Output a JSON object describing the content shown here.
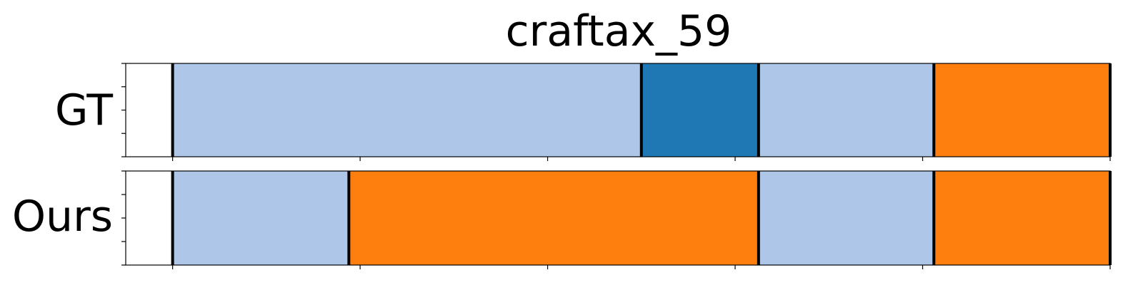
{
  "chart_data": {
    "type": "segmentation_timeline",
    "title": "craftax_59",
    "xlim": [
      -5,
      100
    ],
    "x_ticks": [
      0,
      20,
      40,
      60,
      80,
      100
    ],
    "x_tick_labels_shown": false,
    "y_ticks_per_row": 5,
    "colors": {
      "light_blue": "#aec7e8",
      "dark_blue": "#1f77b4",
      "orange": "#ff7f0e",
      "boundary": "#000000",
      "frame": "#000000"
    },
    "rows": [
      {
        "label": "GT",
        "segments": [
          {
            "start": 0,
            "end": 50,
            "color": "light_blue"
          },
          {
            "start": 50,
            "end": 62.5,
            "color": "dark_blue"
          },
          {
            "start": 62.5,
            "end": 81.2,
            "color": "light_blue"
          },
          {
            "start": 81.2,
            "end": 100,
            "color": "orange"
          }
        ],
        "boundaries": [
          0,
          50,
          62.5,
          81.2,
          100
        ]
      },
      {
        "label": "Ours",
        "segments": [
          {
            "start": 0,
            "end": 18.8,
            "color": "light_blue"
          },
          {
            "start": 18.8,
            "end": 62.5,
            "color": "orange"
          },
          {
            "start": 62.5,
            "end": 81.2,
            "color": "light_blue"
          },
          {
            "start": 81.2,
            "end": 100,
            "color": "orange"
          }
        ],
        "boundaries": [
          0,
          18.8,
          62.5,
          81.2,
          100
        ]
      }
    ]
  }
}
